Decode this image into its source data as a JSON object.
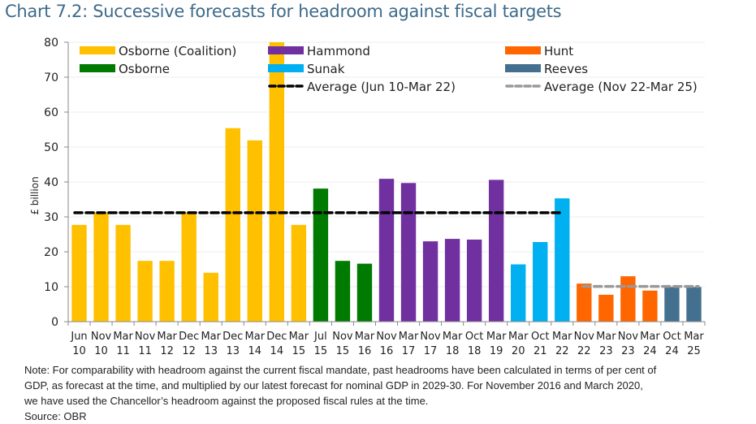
{
  "title": "Chart 7.2: Successive forecasts for headroom against fiscal targets",
  "note": {
    "line1": "Note: For comparability with headroom against the current fiscal mandate, past headrooms have been calculated in terms of per cent of",
    "line2": "GDP, as forecast at the time, and multiplied by our latest forecast for nominal GDP in 2029-30. For November 2016 and March 2020,",
    "line3": "we have used the Chancellor’s headroom against the proposed fiscal rules at the time.",
    "source": "Source: OBR"
  },
  "colors": {
    "Osborne (Coalition)": "#ffc000",
    "Osborne": "#007a00",
    "Hammond": "#7030a0",
    "Sunak": "#00b0f0",
    "Hunt": "#ff6600",
    "Reeves": "#44708f",
    "avg1": "#000000",
    "avg2": "#999999"
  },
  "chart_data": {
    "type": "bar",
    "title": "Chart 7.2: Successive forecasts for headroom against fiscal targets",
    "xlabel": "",
    "ylabel": "£ billion",
    "ylim": [
      0,
      80
    ],
    "yticks": [
      0,
      10,
      20,
      30,
      40,
      50,
      60,
      70,
      80
    ],
    "grid": true,
    "legend_position": "top",
    "categories": [
      [
        "Jun",
        "10"
      ],
      [
        "Nov",
        "10"
      ],
      [
        "Mar",
        "11"
      ],
      [
        "Nov",
        "11"
      ],
      [
        "Mar",
        "12"
      ],
      [
        "Dec",
        "12"
      ],
      [
        "Mar",
        "13"
      ],
      [
        "Dec",
        "13"
      ],
      [
        "Mar",
        "14"
      ],
      [
        "Dec",
        "14"
      ],
      [
        "Mar",
        "15"
      ],
      [
        "Jul",
        "15"
      ],
      [
        "Nov",
        "15"
      ],
      [
        "Mar",
        "16"
      ],
      [
        "Nov",
        "16"
      ],
      [
        "Mar",
        "17"
      ],
      [
        "Nov",
        "17"
      ],
      [
        "Mar",
        "18"
      ],
      [
        "Oct",
        "18"
      ],
      [
        "Mar",
        "19"
      ],
      [
        "Mar",
        "20"
      ],
      [
        "Oct",
        "21"
      ],
      [
        "Mar",
        "22"
      ],
      [
        "Nov",
        "22"
      ],
      [
        "Mar",
        "23"
      ],
      [
        "Nov",
        "23"
      ],
      [
        "Mar",
        "24"
      ],
      [
        "Oct",
        "24"
      ],
      [
        "Mar",
        "25"
      ]
    ],
    "values": [
      27.7,
      31.2,
      27.7,
      17.4,
      17.4,
      31.2,
      14.0,
      55.4,
      51.9,
      80.0,
      27.7,
      38.1,
      17.4,
      16.6,
      40.9,
      39.7,
      23.0,
      23.7,
      23.5,
      40.6,
      16.4,
      22.8,
      35.3,
      10.9,
      7.7,
      13.0,
      8.9,
      9.9,
      9.9
    ],
    "series_of_bar": [
      "Osborne (Coalition)",
      "Osborne (Coalition)",
      "Osborne (Coalition)",
      "Osborne (Coalition)",
      "Osborne (Coalition)",
      "Osborne (Coalition)",
      "Osborne (Coalition)",
      "Osborne (Coalition)",
      "Osborne (Coalition)",
      "Osborne (Coalition)",
      "Osborne (Coalition)",
      "Osborne",
      "Osborne",
      "Osborne",
      "Hammond",
      "Hammond",
      "Hammond",
      "Hammond",
      "Hammond",
      "Hammond",
      "Sunak",
      "Sunak",
      "Sunak",
      "Hunt",
      "Hunt",
      "Hunt",
      "Hunt",
      "Reeves",
      "Reeves"
    ],
    "averages": [
      {
        "name": "Average (Jun 10-Mar 22)",
        "value": 31.2,
        "from_index": 0,
        "to_index": 22,
        "style": "dashed-black"
      },
      {
        "name": "Average (Nov 22-Mar 25)",
        "value": 10.1,
        "from_index": 23,
        "to_index": 28,
        "style": "dashed-grey"
      }
    ],
    "legend": [
      {
        "name": "Osborne (Coalition)",
        "type": "bar"
      },
      {
        "name": "Hammond",
        "type": "bar"
      },
      {
        "name": "Hunt",
        "type": "bar"
      },
      {
        "name": "Osborne",
        "type": "bar"
      },
      {
        "name": "Sunak",
        "type": "bar"
      },
      {
        "name": "Reeves",
        "type": "bar"
      },
      {
        "name": "Average (Jun 10-Mar 22)",
        "type": "line"
      },
      {
        "name": "Average (Nov 22-Mar 25)",
        "type": "line"
      }
    ]
  }
}
